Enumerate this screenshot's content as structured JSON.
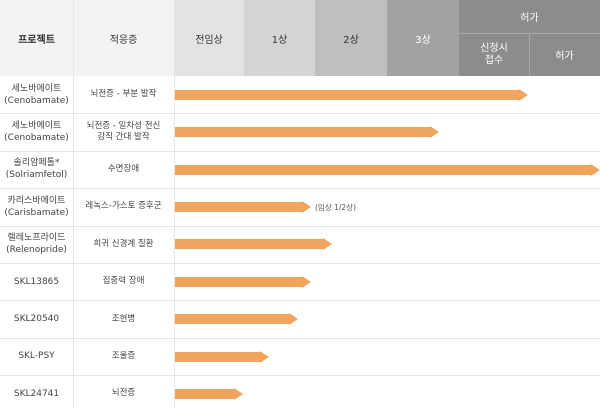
{
  "header": {
    "project": "프로젝트",
    "indication": "적응증",
    "stages": [
      "전임상",
      "1상",
      "2상",
      "3상"
    ],
    "approval": "허가",
    "approval_sub": [
      "신청시\n접수",
      "허가"
    ]
  },
  "colors": {
    "bar": "#f0a55f",
    "preclinical": "#e3e3e3",
    "phase1": "#d4d4d4",
    "phase2": "#bfbfbf",
    "phase3": "#a3a3a3",
    "approval": "#8c8c8c"
  },
  "rows": [
    {
      "project": "세노바메이트\n(Cenobamate)",
      "indication": "뇌전증 - 부분 발작",
      "progress": 0.83,
      "note": ""
    },
    {
      "project": "세노바메이트\n(Cenobamate)",
      "indication": "뇌전증 - 일차성 전신\n강직 간대 발작",
      "progress": 0.62,
      "note": ""
    },
    {
      "project": "솔리암페톨*\n(Solriamfetol)",
      "indication": "수면장애",
      "progress": 1.0,
      "note": ""
    },
    {
      "project": "카리스바메이트\n(Carisbamate)",
      "indication": "레녹스-가스토 증후군",
      "progress": 0.32,
      "note": "(임상 1/2상)"
    },
    {
      "project": "렐레노프라이드\n(Relenopride)",
      "indication": "희귀 신경계 질환",
      "progress": 0.37,
      "note": ""
    },
    {
      "project": "SKL13865",
      "indication": "집중력 장애",
      "progress": 0.32,
      "note": ""
    },
    {
      "project": "SKL20540",
      "indication": "조현병",
      "progress": 0.29,
      "note": ""
    },
    {
      "project": "SKL-PSY",
      "indication": "조울증",
      "progress": 0.22,
      "note": ""
    },
    {
      "project": "SKL24741",
      "indication": "뇌전증",
      "progress": 0.16,
      "note": ""
    }
  ]
}
